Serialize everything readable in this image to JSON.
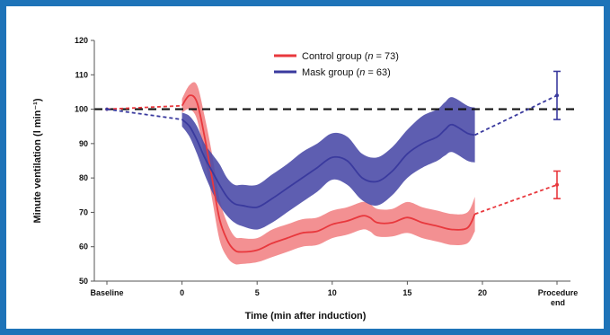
{
  "chart_data": {
    "type": "line",
    "title": "",
    "xlabel": "Time (min after induction)",
    "ylabel": "Minute ventilation (l min⁻¹)",
    "ylim": [
      50,
      120
    ],
    "yticks": [
      50,
      60,
      70,
      80,
      90,
      100,
      110,
      120
    ],
    "xlim": [
      -5.5,
      22.5
    ],
    "xtick_labels": [
      {
        "x": -5,
        "label": "Baseline"
      },
      {
        "x": 0,
        "label": "0"
      },
      {
        "x": 5,
        "label": "5"
      },
      {
        "x": 10,
        "label": "10"
      },
      {
        "x": 15,
        "label": "15"
      },
      {
        "x": 20,
        "label": "20"
      },
      {
        "x": 25,
        "label": "Procedure end"
      }
    ],
    "reference_line": {
      "y": 100,
      "style": "dashed",
      "color": "#111111"
    },
    "grid": false,
    "legend_position": "top-center",
    "series": [
      {
        "name": "Control group",
        "n_label": "n",
        "n_value": "73",
        "color": "#e8383d",
        "band_color": "#ef6b6e",
        "baseline": {
          "x": -5,
          "y": 100
        },
        "x": [
          0,
          0.5,
          1,
          1.5,
          2,
          2.5,
          3,
          3.5,
          4,
          5,
          6,
          7,
          8,
          9,
          10,
          11,
          12,
          12.5,
          13,
          14,
          15,
          16,
          17,
          18,
          19,
          19.5
        ],
        "mean": [
          101,
          104,
          102,
          92,
          80,
          68,
          62,
          59,
          58.5,
          59,
          61,
          62.5,
          64,
          64.5,
          66.5,
          67.5,
          69,
          68.5,
          67,
          67,
          68.5,
          67,
          66,
          65,
          65.5,
          69.5
        ],
        "lower": [
          99,
          100,
          97,
          86,
          74,
          62,
          57,
          55,
          55,
          55.5,
          57,
          58.5,
          60,
          60.5,
          62.5,
          63.5,
          65,
          64.5,
          63,
          63,
          64,
          62.5,
          61.5,
          60.5,
          61,
          64.5
        ],
        "upper": [
          103,
          107,
          107,
          98,
          87,
          74,
          67,
          63,
          62.5,
          62.5,
          65,
          66.5,
          68,
          68.5,
          70.5,
          71.5,
          73,
          72.5,
          71,
          71,
          73,
          71.5,
          70.5,
          69.5,
          70,
          74.5
        ],
        "end": {
          "x": 25,
          "y": 78,
          "err_low": 74,
          "err_high": 82
        }
      },
      {
        "name": "Mask group",
        "n_label": "n",
        "n_value": "63",
        "color": "#3a3a9e",
        "band_color": "#4c4ca8",
        "baseline": {
          "x": -5,
          "y": 100
        },
        "x": [
          0,
          0.5,
          1,
          1.5,
          2,
          2.5,
          3,
          3.5,
          4,
          5,
          6,
          7,
          8,
          9,
          10,
          11,
          12,
          13,
          14,
          15,
          16,
          17,
          17.5,
          18,
          19,
          19.5
        ],
        "mean": [
          97,
          95,
          91,
          86,
          82,
          78,
          74.5,
          72.5,
          72,
          71.5,
          74,
          77,
          80,
          83,
          86,
          85,
          80,
          79,
          82,
          87,
          90,
          92,
          94,
          95.5,
          93,
          92.5
        ],
        "lower": [
          95,
          92,
          87,
          81,
          76,
          72,
          69,
          67,
          66,
          65,
          67,
          70,
          73,
          76,
          79.5,
          78,
          73.5,
          72,
          75,
          80,
          83,
          85,
          86.5,
          87.5,
          85,
          84.5
        ],
        "upper": [
          99,
          98,
          95,
          90,
          87,
          84,
          80,
          78,
          78,
          78,
          81,
          84,
          87.5,
          90,
          93,
          92,
          87,
          86,
          89,
          94,
          98,
          100,
          102,
          103.5,
          101,
          100.5
        ],
        "end": {
          "x": 25,
          "y": 104,
          "err_low": 97,
          "err_high": 111
        }
      }
    ]
  }
}
